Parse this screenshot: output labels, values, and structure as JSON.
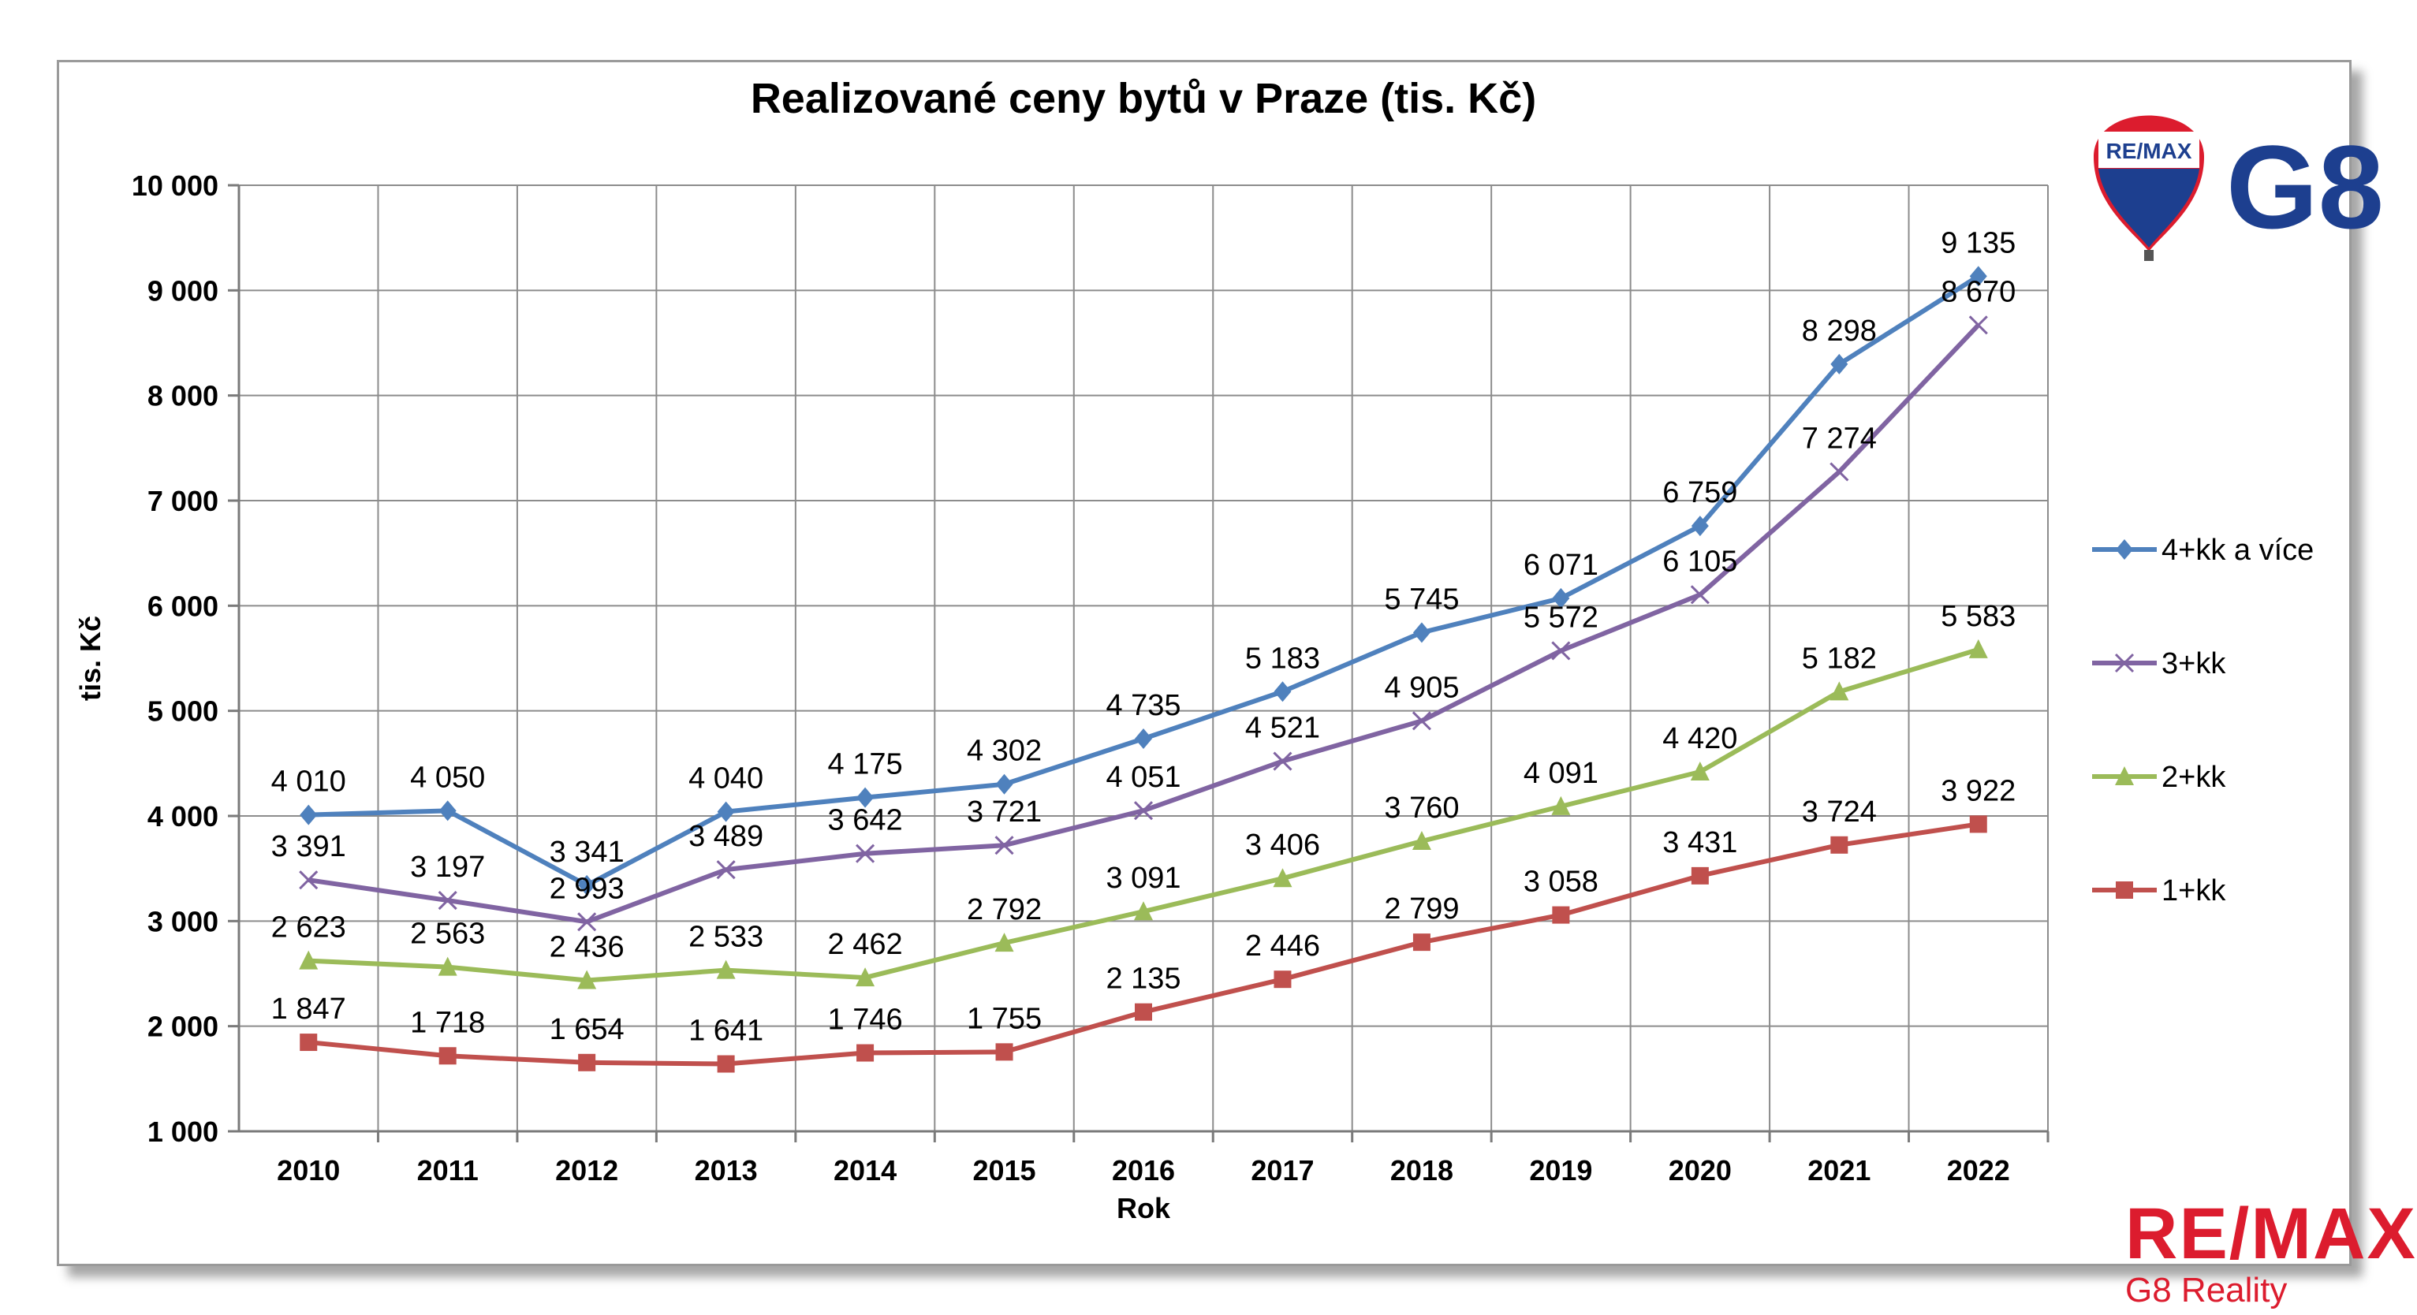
{
  "chart_data": {
    "type": "line",
    "title": "Realizované ceny bytů v Praze (tis. Kč)",
    "xlabel": "Rok",
    "ylabel": "tis. Kč",
    "categories": [
      "2010",
      "2011",
      "2012",
      "2013",
      "2014",
      "2015",
      "2016",
      "2017",
      "2018",
      "2019",
      "2020",
      "2021",
      "2022"
    ],
    "ylim": [
      1000,
      10000
    ],
    "yticks": [
      1000,
      2000,
      3000,
      4000,
      5000,
      6000,
      7000,
      8000,
      9000,
      10000
    ],
    "ytick_labels": [
      "1 000",
      "2 000",
      "3 000",
      "4 000",
      "5 000",
      "6 000",
      "7 000",
      "8 000",
      "9 000",
      "10 000"
    ],
    "grid": true,
    "legend_position": "right",
    "series": [
      {
        "name": "4+kk a více",
        "color": "#4f81bd",
        "marker": "diamond",
        "values": [
          4010,
          4050,
          3341,
          4040,
          4175,
          4302,
          4735,
          5183,
          5745,
          6071,
          6759,
          8298,
          9135
        ],
        "labels": [
          "4 010",
          "4 050",
          "3 341",
          "4 040",
          "4 175",
          "4 302",
          "4 735",
          "5 183",
          "5 745",
          "6 071",
          "6 759",
          "8 298",
          "9 135"
        ]
      },
      {
        "name": "3+kk",
        "color": "#8064a2",
        "marker": "x",
        "values": [
          3391,
          3197,
          2993,
          3489,
          3642,
          3721,
          4051,
          4521,
          4905,
          5572,
          6105,
          7274,
          8670
        ],
        "labels": [
          "3 391",
          "3 197",
          "2 993",
          "3 489",
          "3 642",
          "3 721",
          "4 051",
          "4 521",
          "4 905",
          "5 572",
          "6 105",
          "7 274",
          "8 670"
        ]
      },
      {
        "name": "2+kk",
        "color": "#9bbb59",
        "marker": "triangle",
        "values": [
          2623,
          2563,
          2436,
          2533,
          2462,
          2792,
          3091,
          3406,
          3760,
          4091,
          4420,
          5182,
          5583
        ],
        "labels": [
          "2 623",
          "2 563",
          "2 436",
          "2 533",
          "2 462",
          "2 792",
          "3 091",
          "3 406",
          "3 760",
          "4 091",
          "4 420",
          "5 182",
          "5 583"
        ]
      },
      {
        "name": "1+kk",
        "color": "#c0504d",
        "marker": "square",
        "values": [
          1847,
          1718,
          1654,
          1641,
          1746,
          1755,
          2135,
          2446,
          2799,
          3058,
          3431,
          3724,
          3922
        ],
        "labels": [
          "1 847",
          "1 718",
          "1 654",
          "1 641",
          "1 746",
          "1 755",
          "2 135",
          "2 446",
          "2 799",
          "3 058",
          "3 431",
          "3 724",
          "3 922"
        ]
      }
    ]
  },
  "logos": {
    "balloon_text": "RE/MAX",
    "g8_text": "G8",
    "brand_text": "RE/MAX",
    "brand_sub": "G8 Reality",
    "brand_color": "#dc1c2e",
    "g8_color": "#1d3f8f"
  }
}
